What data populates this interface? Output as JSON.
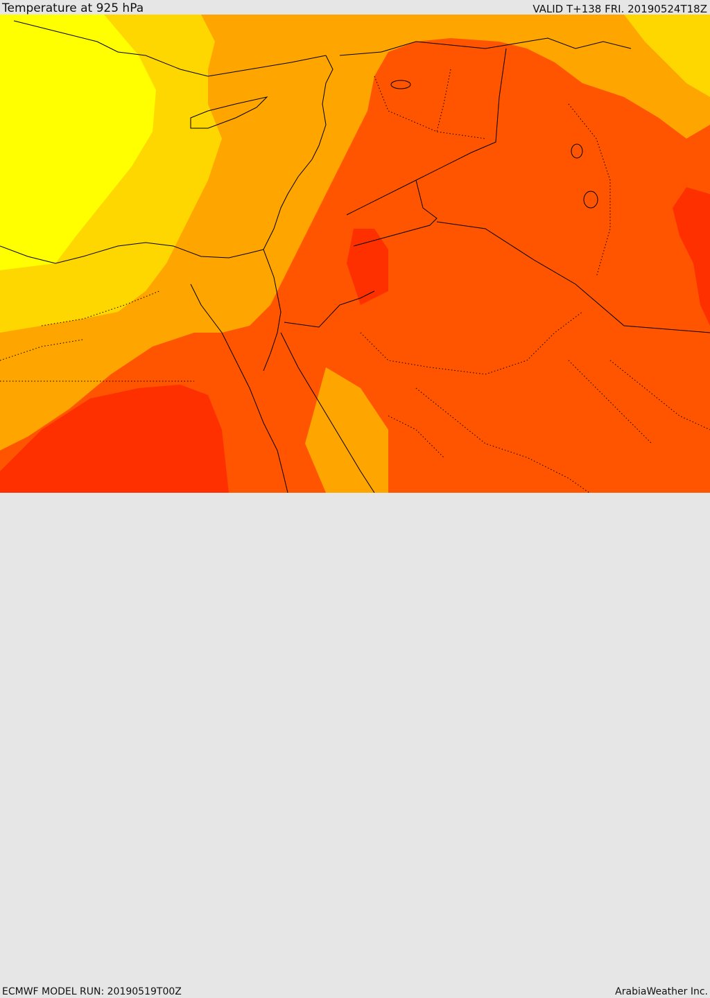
{
  "header": {
    "title": "Temperature at 925 hPa",
    "valid": "VALID T+138 FRI. 20190524T18Z"
  },
  "footer": {
    "model_run": "ECMWF MODEL RUN: 20190519T00Z",
    "credit": "ArabiaWeather Inc."
  },
  "palette": {
    "band_1": "#ffff00",
    "band_2": "#ffd700",
    "band_3": "#ffa500",
    "band_4": "#ff5500",
    "band_5": "#ff3000",
    "border": "#000000"
  }
}
